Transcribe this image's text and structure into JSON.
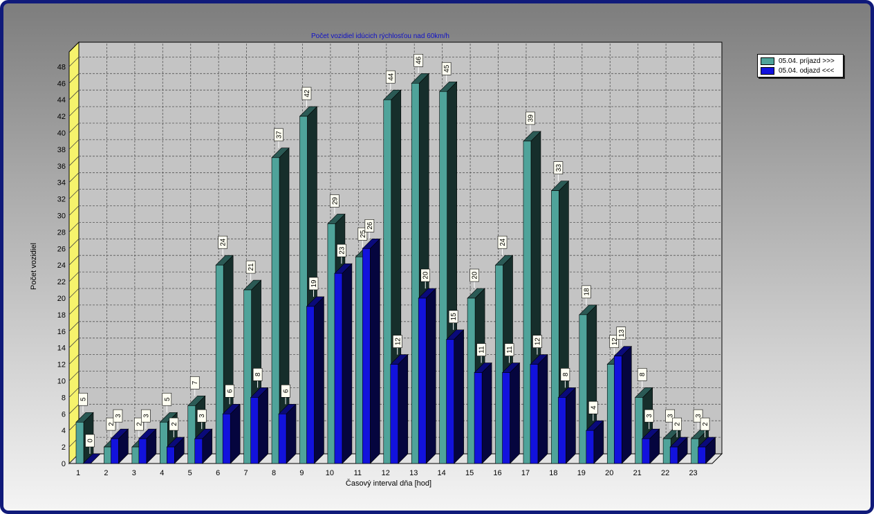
{
  "chart_data": {
    "type": "bar",
    "title": "Počet vozidiel idúcich rýchlosťou nad 60km/h",
    "xlabel": "Časový interval dňa [hod]",
    "ylabel": "Počet vozidiel",
    "categories": [
      "1",
      "2",
      "3",
      "4",
      "5",
      "6",
      "7",
      "8",
      "9",
      "10",
      "11",
      "12",
      "13",
      "14",
      "15",
      "16",
      "17",
      "18",
      "19",
      "20",
      "21",
      "22",
      "23"
    ],
    "series": [
      {
        "name": "05.04.  príjazd >>>",
        "color": "#4fa39a",
        "values": [
          5,
          2,
          2,
          5,
          7,
          24,
          21,
          37,
          42,
          29,
          25,
          44,
          46,
          45,
          20,
          24,
          39,
          33,
          18,
          12,
          8,
          3,
          3
        ]
      },
      {
        "name": "05.04.  odjazd <<<",
        "color": "#1212dd",
        "values": [
          0,
          3,
          3,
          2,
          3,
          6,
          8,
          6,
          19,
          23,
          26,
          12,
          20,
          15,
          11,
          11,
          12,
          8,
          4,
          13,
          3,
          2,
          2
        ]
      }
    ],
    "ylim": [
      0,
      48
    ],
    "yticks": [
      0,
      2,
      4,
      6,
      8,
      10,
      12,
      14,
      16,
      18,
      20,
      22,
      24,
      26,
      28,
      30,
      32,
      34,
      36,
      38,
      40,
      42,
      44,
      46,
      48
    ],
    "grid": true,
    "legend_position": "top-right"
  }
}
